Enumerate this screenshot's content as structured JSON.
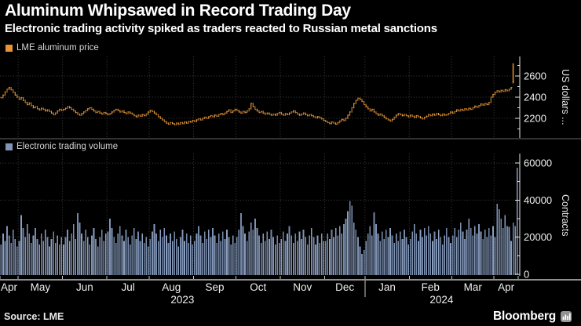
{
  "header": {
    "title": "Aluminum Whipsawed in Record Trading Day",
    "subtitle": "Electronic trading activity spiked as traders reacted to Russian metal sanctions"
  },
  "price_panel": {
    "legend": "LME aluminum price",
    "axis_title": "US dollars ...",
    "accent_color": "#e8933a"
  },
  "volume_panel": {
    "legend": "Electronic trading volume",
    "axis_title": "Contracts",
    "accent_color": "#8094b6"
  },
  "footer": {
    "source": "Source: LME",
    "brand": "Bloomberg"
  },
  "x_axis": {
    "month_labels": [
      "Apr",
      "May",
      "Jun",
      "Jul",
      "Aug",
      "Sep",
      "Oct",
      "Nov",
      "Dec",
      "Jan",
      "Feb",
      "Mar",
      "Apr"
    ],
    "month_start_days": [
      0,
      9,
      31,
      53,
      74,
      96,
      117,
      139,
      161,
      181,
      203,
      224,
      245
    ],
    "total_days": 257,
    "years": [
      {
        "label": "2023",
        "start_day": 0,
        "end_day": 181
      },
      {
        "label": "2024",
        "start_day": 181,
        "end_day": 257
      }
    ]
  },
  "chart_data": [
    {
      "type": "bar",
      "title": "LME aluminum price",
      "ylabel": "US dollars ...",
      "yticks": [
        2200,
        2400,
        2600
      ],
      "yticks_minor": [
        2100,
        2300,
        2500,
        2700
      ],
      "ylim": [
        2010,
        2800
      ],
      "grid": true,
      "legend_position": "top-left",
      "close": [
        2395,
        2420,
        2450,
        2475,
        2490,
        2470,
        2445,
        2420,
        2400,
        2380,
        2395,
        2370,
        2350,
        2330,
        2345,
        2320,
        2300,
        2310,
        2290,
        2280,
        2295,
        2285,
        2270,
        2280,
        2265,
        2250,
        2235,
        2250,
        2270,
        2285,
        2275,
        2285,
        2295,
        2310,
        2300,
        2285,
        2270,
        2255,
        2240,
        2230,
        2245,
        2260,
        2275,
        2290,
        2300,
        2285,
        2270,
        2255,
        2265,
        2250,
        2240,
        2255,
        2245,
        2235,
        2245,
        2260,
        2275,
        2285,
        2275,
        2260,
        2270,
        2255,
        2245,
        2260,
        2250,
        2240,
        2225,
        2215,
        2230,
        2220,
        2235,
        2225,
        2240,
        2260,
        2275,
        2265,
        2250,
        2235,
        2215,
        2200,
        2185,
        2170,
        2155,
        2145,
        2160,
        2150,
        2140,
        2155,
        2145,
        2160,
        2150,
        2165,
        2155,
        2170,
        2165,
        2180,
        2170,
        2185,
        2195,
        2185,
        2200,
        2210,
        2200,
        2215,
        2225,
        2215,
        2230,
        2220,
        2235,
        2245,
        2235,
        2250,
        2265,
        2280,
        2255,
        2270,
        2285,
        2275,
        2260,
        2250,
        2265,
        2255,
        2270,
        2290,
        2340,
        2310,
        2285,
        2270,
        2255,
        2265,
        2250,
        2240,
        2250,
        2240,
        2230,
        2240,
        2230,
        2245,
        2255,
        2240,
        2230,
        2245,
        2235,
        2250,
        2260,
        2270,
        2255,
        2240,
        2230,
        2240,
        2250,
        2235,
        2225,
        2235,
        2225,
        2215,
        2205,
        2215,
        2205,
        2195,
        2180,
        2170,
        2160,
        2150,
        2165,
        2155,
        2145,
        2160,
        2175,
        2190,
        2180,
        2200,
        2230,
        2260,
        2300,
        2340,
        2370,
        2390,
        2380,
        2360,
        2330,
        2310,
        2290,
        2270,
        2285,
        2260,
        2245,
        2230,
        2240,
        2225,
        2210,
        2195,
        2185,
        2175,
        2190,
        2210,
        2230,
        2245,
        2235,
        2225,
        2235,
        2225,
        2215,
        2230,
        2220,
        2210,
        2225,
        2215,
        2205,
        2195,
        2210,
        2220,
        2235,
        2225,
        2240,
        2230,
        2245,
        2235,
        2225,
        2240,
        2230,
        2235,
        2245,
        2260,
        2250,
        2265,
        2280,
        2270,
        2285,
        2275,
        2290,
        2280,
        2295,
        2285,
        2300,
        2315,
        2305,
        2320,
        2335,
        2325,
        2340,
        2330,
        2350,
        2400,
        2425,
        2445,
        2460,
        2450,
        2465,
        2455,
        2470,
        2460,
        2475,
        2490,
        2550
      ],
      "final_day": {
        "high": 2720,
        "low": 2530,
        "close": 2550
      }
    },
    {
      "type": "bar",
      "title": "Electronic trading volume",
      "ylabel": "Contracts",
      "yticks": [
        0,
        20000,
        40000,
        60000
      ],
      "yticks_minor": [
        10000,
        30000,
        50000
      ],
      "ylim": [
        0,
        65000
      ],
      "grid": true,
      "legend_position": "top-left",
      "values": [
        16000,
        22000,
        18000,
        26000,
        21000,
        17000,
        24000,
        19000,
        15000,
        18000,
        32000,
        25000,
        20000,
        27000,
        22000,
        17000,
        21000,
        25000,
        19000,
        16000,
        22000,
        18000,
        24000,
        20000,
        15000,
        19000,
        23000,
        17000,
        21000,
        16000,
        20000,
        16000,
        20000,
        24000,
        18000,
        22000,
        27000,
        19000,
        33000,
        28000,
        22000,
        18000,
        24000,
        20000,
        16000,
        21000,
        25000,
        19000,
        15000,
        20000,
        24000,
        18000,
        22000,
        23000,
        30000,
        25000,
        20000,
        17000,
        22000,
        26000,
        21000,
        18000,
        24000,
        20000,
        16000,
        21000,
        25000,
        19000,
        23000,
        18000,
        22000,
        17000,
        20000,
        15000,
        19000,
        23000,
        27000,
        22000,
        18000,
        24000,
        20000,
        25000,
        21000,
        17000,
        22000,
        18000,
        23000,
        19000,
        15000,
        20000,
        24000,
        18000,
        22000,
        17000,
        21000,
        16000,
        18000,
        22000,
        26000,
        21000,
        17000,
        23000,
        19000,
        24000,
        20000,
        25000,
        21000,
        17000,
        22000,
        18000,
        23000,
        19000,
        24000,
        20000,
        16000,
        21000,
        17000,
        20000,
        24000,
        33000,
        26000,
        22000,
        18000,
        23000,
        28000,
        24000,
        30000,
        25000,
        21000,
        17000,
        22000,
        18000,
        23000,
        19000,
        24000,
        20000,
        16000,
        21000,
        17000,
        19000,
        23000,
        18000,
        22000,
        26000,
        21000,
        17000,
        22000,
        18000,
        23000,
        19000,
        24000,
        20000,
        16000,
        21000,
        25000,
        20000,
        16000,
        21000,
        17000,
        22000,
        18000,
        18000,
        22000,
        19000,
        24000,
        20000,
        25000,
        21000,
        26000,
        22000,
        27000,
        30000,
        34000,
        39500,
        37000,
        28000,
        24000,
        20000,
        15000,
        11000,
        13000,
        18000,
        22000,
        26000,
        21000,
        33500,
        27000,
        22000,
        18000,
        23000,
        19000,
        24000,
        20000,
        25000,
        21000,
        17000,
        22000,
        18000,
        23000,
        19000,
        24000,
        20000,
        16000,
        19000,
        23000,
        27000,
        22000,
        18000,
        24000,
        20000,
        25000,
        21000,
        26000,
        22000,
        18000,
        23000,
        19000,
        24000,
        20000,
        16000,
        21000,
        25000,
        20000,
        17000,
        21000,
        25000,
        20000,
        24000,
        28000,
        23000,
        19000,
        24000,
        30000,
        25000,
        21000,
        26000,
        22000,
        27000,
        23000,
        19000,
        24000,
        20000,
        25000,
        21000,
        26000,
        20000,
        38000,
        35000,
        30000,
        25000,
        32000,
        26000,
        25500,
        18000,
        28000,
        26000,
        57500
      ]
    }
  ]
}
